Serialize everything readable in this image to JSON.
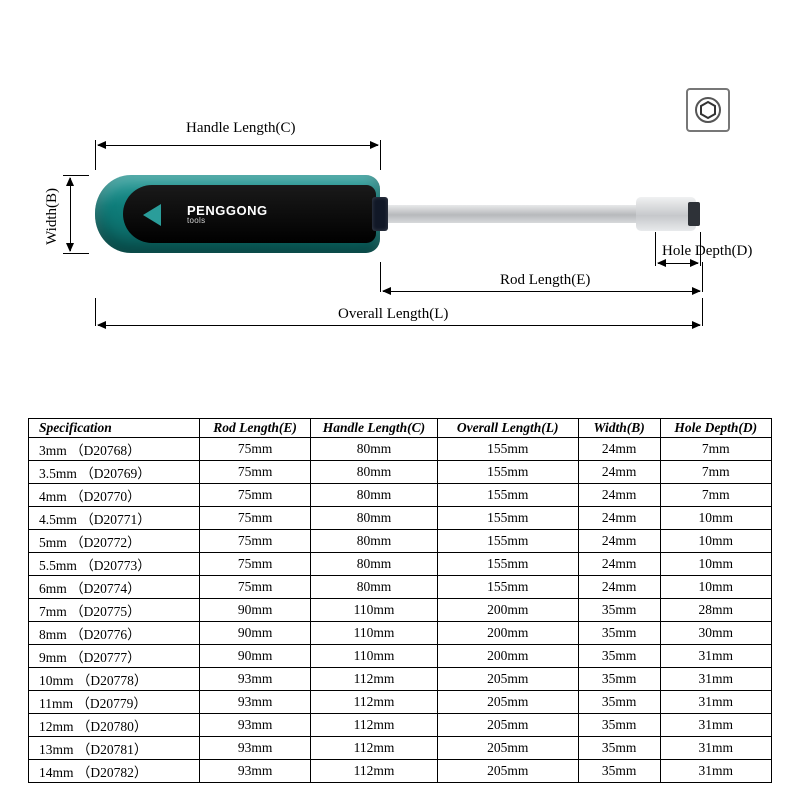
{
  "diagram": {
    "labels": {
      "handle_length": "Handle Length(C)",
      "width": "Width(B)",
      "hole_depth": "Hole Depth(D)",
      "rod_length": "Rod Length(E)",
      "overall_length": "Overall Length(L)"
    },
    "brand": "PENGGONG",
    "brand_sub": "tools"
  },
  "table": {
    "columns": [
      "Specification",
      "Rod Length(E)",
      "Handle Length(C)",
      "Overall Length(L)",
      "Width(B)",
      "Hole Depth(D)"
    ],
    "col_widths_pct": [
      23,
      15,
      17,
      19,
      11,
      15
    ],
    "rows": [
      [
        "3mm （D20768）",
        "75mm",
        "80mm",
        "155mm",
        "24mm",
        "7mm"
      ],
      [
        "3.5mm （D20769）",
        "75mm",
        "80mm",
        "155mm",
        "24mm",
        "7mm"
      ],
      [
        "4mm （D20770）",
        "75mm",
        "80mm",
        "155mm",
        "24mm",
        "7mm"
      ],
      [
        "4.5mm （D20771）",
        "75mm",
        "80mm",
        "155mm",
        "24mm",
        "10mm"
      ],
      [
        "5mm （D20772）",
        "75mm",
        "80mm",
        "155mm",
        "24mm",
        "10mm"
      ],
      [
        "5.5mm （D20773）",
        "75mm",
        "80mm",
        "155mm",
        "24mm",
        "10mm"
      ],
      [
        "6mm （D20774）",
        "75mm",
        "80mm",
        "155mm",
        "24mm",
        "10mm"
      ],
      [
        "7mm （D20775）",
        "90mm",
        "110mm",
        "200mm",
        "35mm",
        "28mm"
      ],
      [
        "8mm （D20776）",
        "90mm",
        "110mm",
        "200mm",
        "35mm",
        "30mm"
      ],
      [
        "9mm （D20777）",
        "90mm",
        "110mm",
        "200mm",
        "35mm",
        "31mm"
      ],
      [
        "10mm （D20778）",
        "93mm",
        "112mm",
        "205mm",
        "35mm",
        "31mm"
      ],
      [
        "11mm （D20779）",
        "93mm",
        "112mm",
        "205mm",
        "35mm",
        "31mm"
      ],
      [
        "12mm （D20780）",
        "93mm",
        "112mm",
        "205mm",
        "35mm",
        "31mm"
      ],
      [
        "13mm （D20781）",
        "93mm",
        "112mm",
        "205mm",
        "35mm",
        "31mm"
      ],
      [
        "14mm （D20782）",
        "93mm",
        "112mm",
        "205mm",
        "35mm",
        "31mm"
      ]
    ]
  }
}
